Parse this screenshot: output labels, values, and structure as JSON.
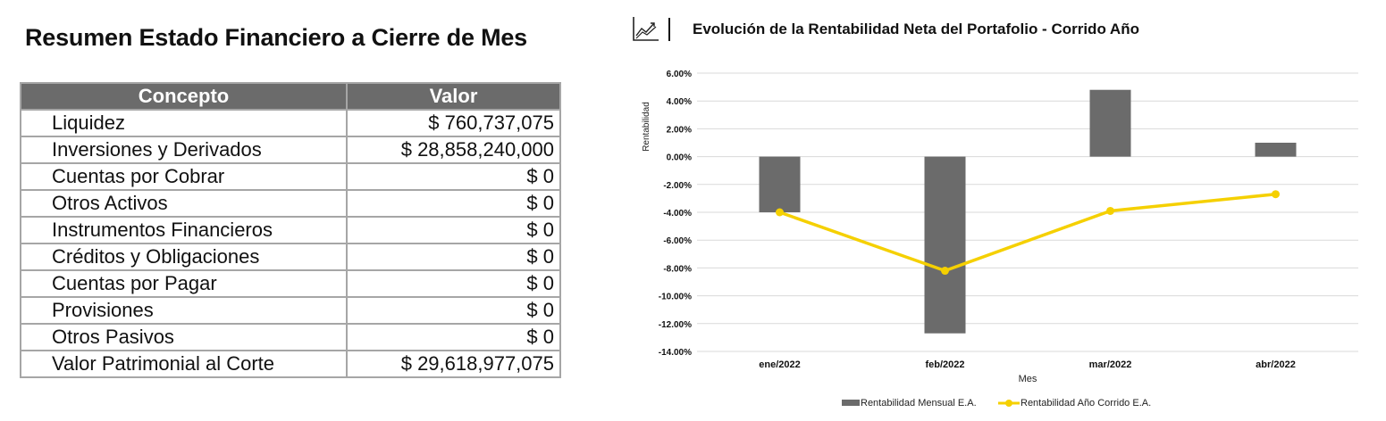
{
  "summary": {
    "title": "Resumen Estado Financiero a Cierre de Mes",
    "headers": {
      "concepto": "Concepto",
      "valor": "Valor"
    },
    "rows": [
      {
        "concepto": "Liquidez",
        "valor": "$ 760,737,075"
      },
      {
        "concepto": "Inversiones y Derivados",
        "valor": "$ 28,858,240,000"
      },
      {
        "concepto": "Cuentas por Cobrar",
        "valor": "$ 0"
      },
      {
        "concepto": "Otros Activos",
        "valor": "$ 0"
      },
      {
        "concepto": "Instrumentos Financieros",
        "valor": "$ 0"
      },
      {
        "concepto": "Créditos y Obligaciones",
        "valor": "$ 0"
      },
      {
        "concepto": "Cuentas por Pagar",
        "valor": "$ 0"
      },
      {
        "concepto": "Provisiones",
        "valor": "$ 0"
      },
      {
        "concepto": "Otros Pasivos",
        "valor": "$ 0"
      },
      {
        "concepto": "Valor Patrimonial al Corte",
        "valor": "$ 29,618,977,075"
      }
    ],
    "colors": {
      "header_bg": "#6b6b6b",
      "border": "#a6a6a6"
    }
  },
  "chart_data": {
    "type": "bar",
    "title": "Evolución de la Rentabilidad Neta del Portafolio - Corrido Año",
    "icon": "trend-chart-icon",
    "xlabel": "Mes",
    "ylabel": "Rentabilidad",
    "categories": [
      "ene/2022",
      "feb/2022",
      "mar/2022",
      "abr/2022"
    ],
    "ylim": [
      -14,
      6
    ],
    "yticks": [
      "6.00%",
      "4.00%",
      "2.00%",
      "0.00%",
      "-2.00%",
      "-4.00%",
      "-6.00%",
      "-8.00%",
      "-10.00%",
      "-12.00%",
      "-14.00%"
    ],
    "grid": true,
    "legend_position": "bottom",
    "series": [
      {
        "name": "Rentabilidad Mensual E.A.",
        "kind": "bar",
        "color": "#6b6b6b",
        "values": [
          -4.0,
          -12.7,
          4.8,
          1.0
        ]
      },
      {
        "name": "Rentabilidad Año Corrido E.A.",
        "kind": "line",
        "color": "#f5d000",
        "values": [
          -4.0,
          -8.2,
          -3.9,
          -2.7
        ]
      }
    ]
  }
}
